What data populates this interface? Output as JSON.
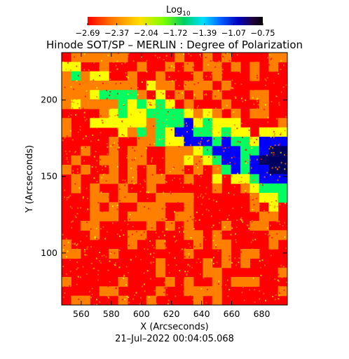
{
  "chart_data": {
    "type": "heatmap",
    "title": "Hinode SOT/SP – MERLIN : Degree of Polarization",
    "xlabel": "X (Arcseconds)",
    "ylabel": "Y (Arcseconds)",
    "date_label": "21–Jul–2022 00:04:05.068",
    "colorbar": {
      "label": "Log",
      "label_sub": "10",
      "ticks": [
        "−2.69",
        "−2.37",
        "−2.04",
        "−1.72",
        "−1.39",
        "−1.07",
        "−0.75"
      ],
      "range": [
        -2.69,
        -0.75
      ],
      "colormap": [
        "#ff0000",
        "#ff8000",
        "#ffe000",
        "#80ff00",
        "#00d060",
        "#00e0ff",
        "#0060ff",
        "#0000c0",
        "#200040",
        "#000000"
      ]
    },
    "xlim": [
      547,
      697
    ],
    "ylim": [
      66,
      231
    ],
    "xticks": [
      560,
      580,
      600,
      620,
      640,
      660,
      680
    ],
    "yticks": [
      100,
      150,
      200
    ],
    "colors": {
      "background": "#ff0000",
      "moderate": "#ff8000",
      "medium": "#ffff00",
      "enhanced": "#00ff60",
      "strong": "#0000ff",
      "sunspot_core": "#000060"
    },
    "features": [
      {
        "name": "diagonal polarization lane",
        "from": [
          548,
          215
        ],
        "to": [
          697,
          150
        ],
        "level": "enhanced"
      },
      {
        "name": "sunspot umbra",
        "center": [
          690,
          160
        ],
        "level": "very high"
      }
    ]
  }
}
